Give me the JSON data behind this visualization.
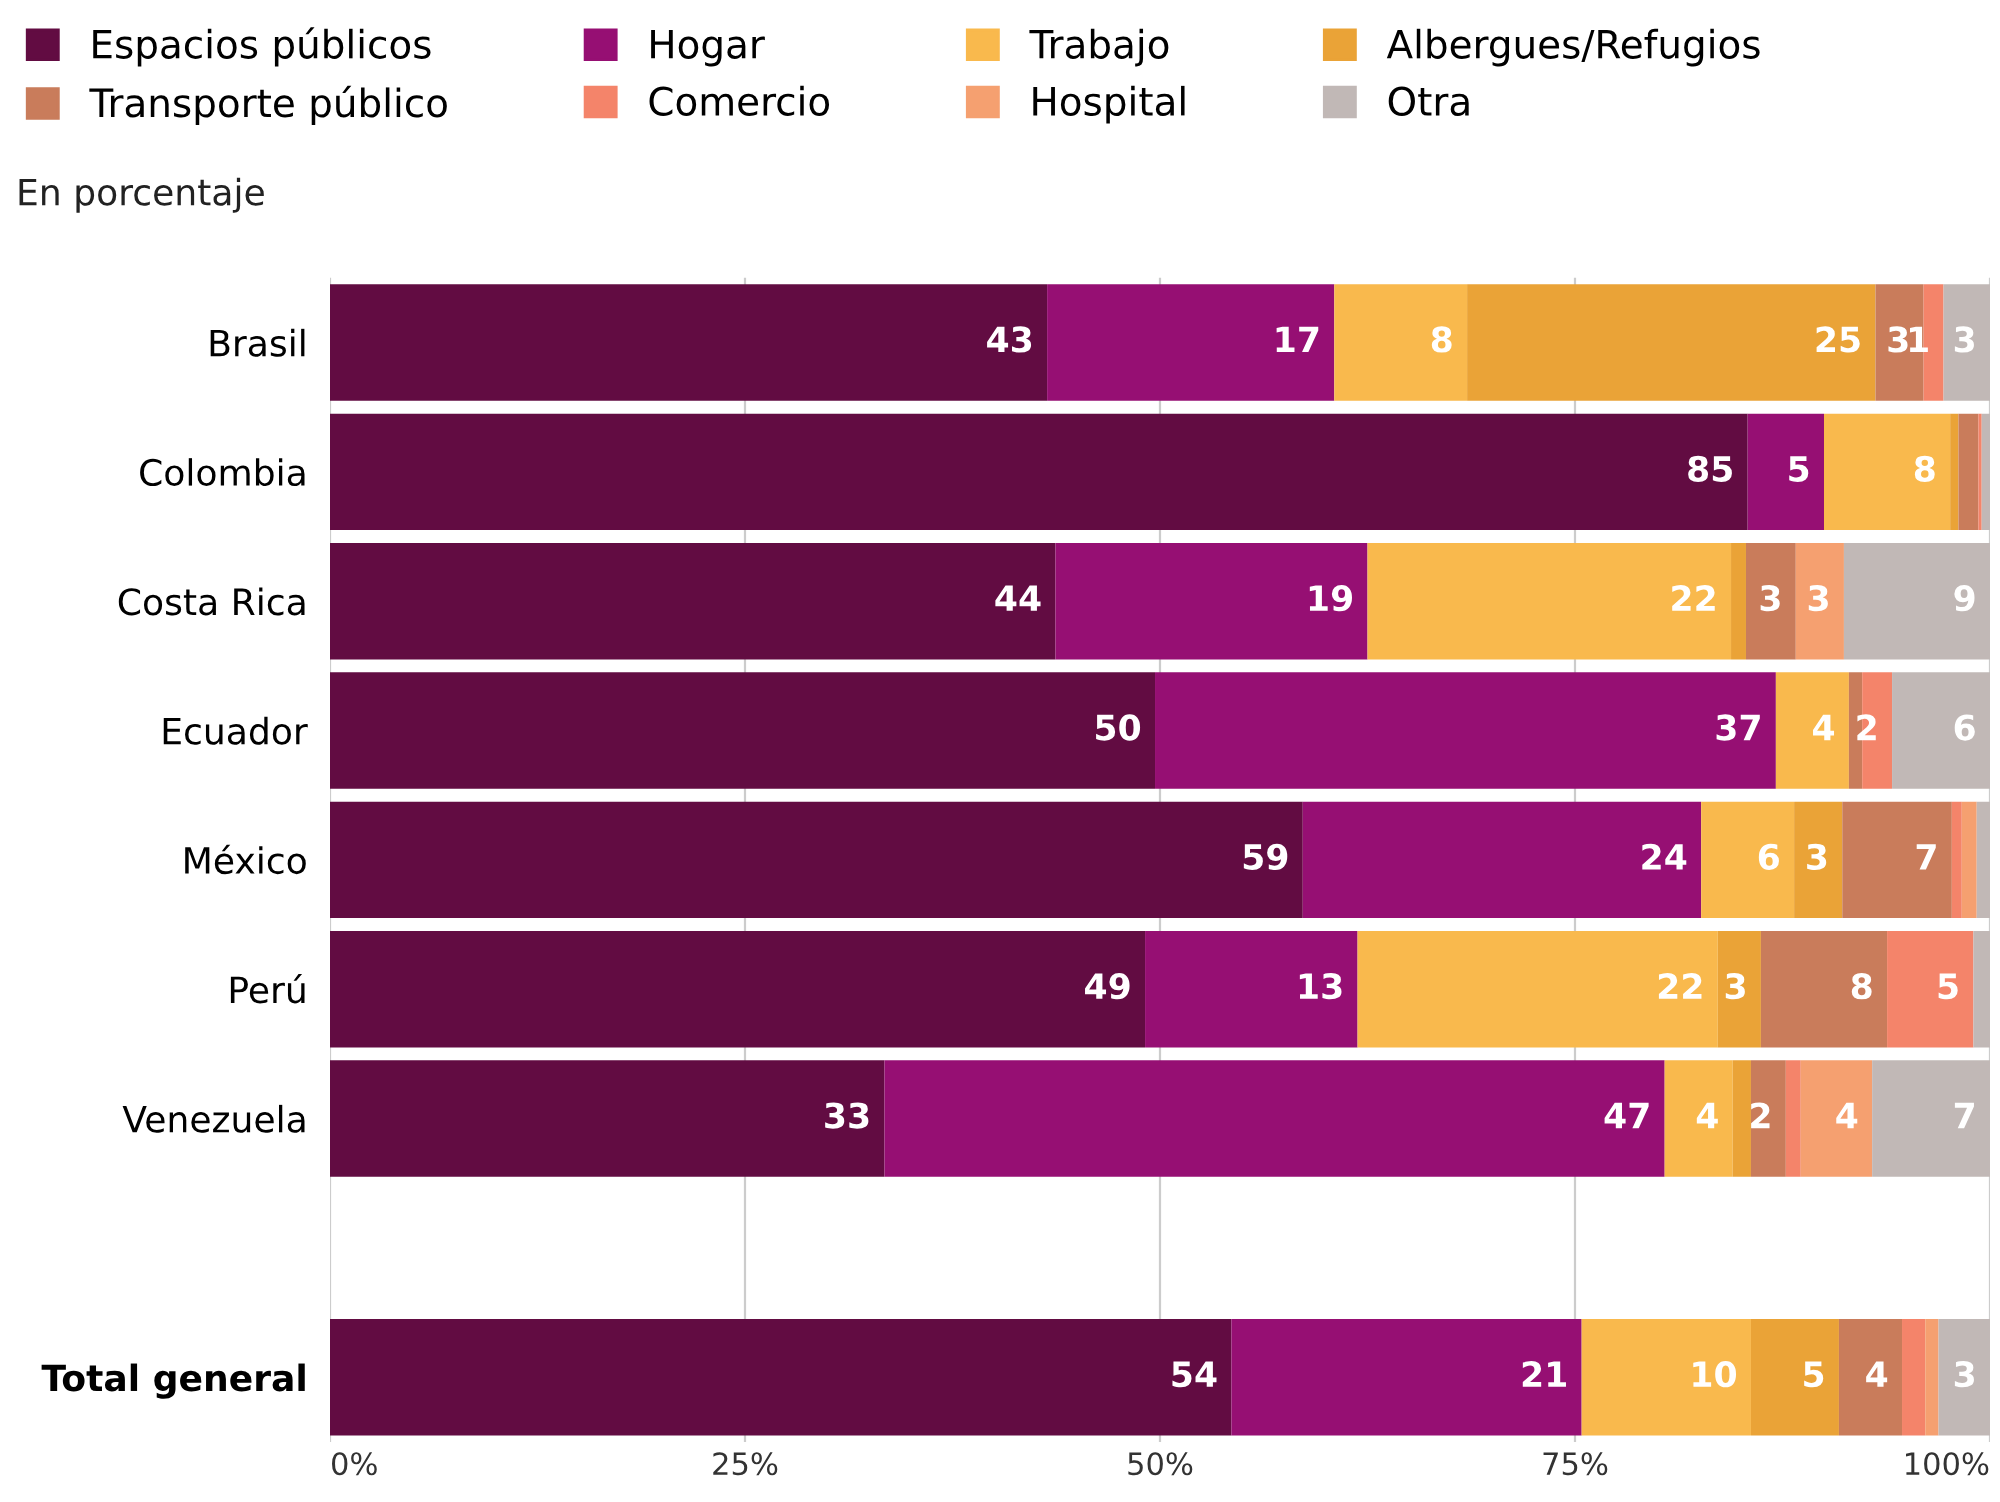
{
  "chart_data": {
    "type": "bar",
    "orientation": "horizontal",
    "stacked": true,
    "subtitle": "En porcentaje",
    "categories": [
      "Brasil",
      "Colombia",
      "Costa Rica",
      "Ecuador",
      "México",
      "Perú",
      "Venezuela",
      null,
      "Total general"
    ],
    "series": [
      {
        "name": "Espacios públicos",
        "color": "#620c42",
        "values": [
          43.2,
          85.4,
          43.7,
          49.7,
          58.6,
          49.1,
          33.4,
          null,
          54.3
        ],
        "value_labels": [
          "43",
          "85",
          "44",
          "50",
          "59",
          "49",
          "33",
          null,
          "54"
        ]
      },
      {
        "name": "Hogar",
        "color": "#960f73",
        "values": [
          17.3,
          4.6,
          18.8,
          37.4,
          24.0,
          12.8,
          47.0,
          null,
          21.1
        ],
        "value_labels": [
          "17",
          "5",
          "19",
          "37",
          "24",
          "13",
          "47",
          null,
          "21"
        ]
      },
      {
        "name": "Trabajo",
        "color": "#f9b94d",
        "values": [
          8.0,
          7.6,
          21.9,
          4.4,
          5.6,
          21.7,
          4.1,
          null,
          10.2
        ],
        "value_labels": [
          "8",
          "8",
          "22",
          "4",
          "6",
          "22",
          "4",
          null,
          "10"
        ]
      },
      {
        "name": "Albergues/Refugios",
        "color": "#eaa337",
        "values": [
          24.6,
          0.5,
          0.9,
          0,
          2.9,
          2.6,
          1.1,
          null,
          5.3
        ],
        "value_labels": [
          "25",
          null,
          null,
          null,
          "3",
          "3",
          null,
          null,
          "5"
        ]
      },
      {
        "name": "Transporte público",
        "color": "#c97c5b",
        "values": [
          2.9,
          1.2,
          3.0,
          0.8,
          6.6,
          7.6,
          2.1,
          null,
          3.8
        ],
        "value_labels": [
          "3",
          null,
          "3",
          null,
          "7",
          "8",
          "2",
          null,
          "4"
        ]
      },
      {
        "name": "Comercio",
        "color": "#f4846a",
        "values": [
          1.2,
          0.2,
          0,
          1.8,
          0.6,
          5.2,
          0.9,
          null,
          1.4
        ],
        "value_labels": [
          "1",
          null,
          null,
          "2",
          null,
          "5",
          null,
          null,
          null
        ]
      },
      {
        "name": "Hospital",
        "color": "#f5a070",
        "values": [
          0,
          0,
          2.9,
          0,
          0.9,
          0,
          4.3,
          null,
          0.8
        ],
        "value_labels": [
          null,
          null,
          "3",
          null,
          null,
          null,
          "4",
          null,
          null
        ]
      },
      {
        "name": "Otra",
        "color": "#c1b8b6",
        "values": [
          2.8,
          0.5,
          8.8,
          5.9,
          0.8,
          1.0,
          7.1,
          null,
          3.1
        ],
        "value_labels": [
          "3",
          null,
          "9",
          "6",
          null,
          null,
          "7",
          null,
          "3"
        ]
      }
    ],
    "xlim": [
      0,
      100
    ],
    "xticks": [
      {
        "value": 0,
        "label": "0%"
      },
      {
        "value": 25,
        "label": "25%"
      },
      {
        "value": 50,
        "label": "50%"
      },
      {
        "value": 75,
        "label": "75%"
      },
      {
        "value": 100,
        "label": "100%"
      }
    ],
    "grid": "x",
    "legend": "top"
  }
}
